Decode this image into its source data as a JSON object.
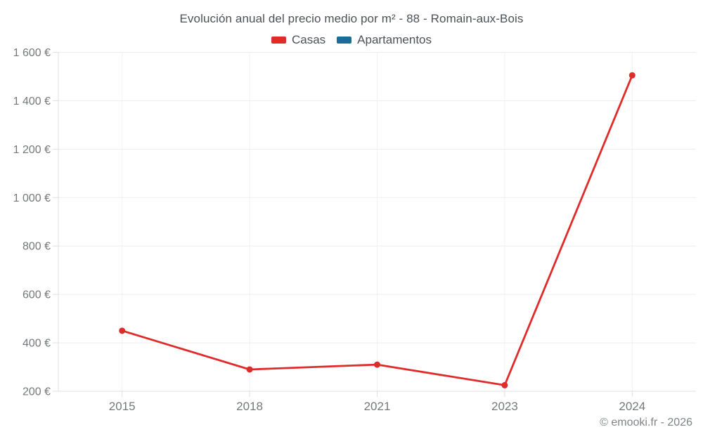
{
  "chart_data": {
    "type": "line",
    "title": "Evolución anual del precio medio por m² - 88 - Romain-aux-Bois",
    "categories": [
      "2015",
      "2018",
      "2021",
      "2023",
      "2024"
    ],
    "series": [
      {
        "name": "Casas",
        "color": "#e02b2b",
        "values": [
          450,
          290,
          310,
          225,
          1505
        ]
      },
      {
        "name": "Apartamentos",
        "color": "#1a6e96",
        "values": []
      }
    ],
    "y_axis": {
      "min": 200,
      "max": 1600,
      "step": 200,
      "unit": "€",
      "ticks": [
        {
          "value": 200,
          "label": "200 €"
        },
        {
          "value": 400,
          "label": "400 €"
        },
        {
          "value": 600,
          "label": "600 €"
        },
        {
          "value": 800,
          "label": "800 €"
        },
        {
          "value": 1000,
          "label": "1 000 €"
        },
        {
          "value": 1200,
          "label": "1 200 €"
        },
        {
          "value": 1400,
          "label": "1 400 €"
        },
        {
          "value": 1600,
          "label": "1 600 €"
        }
      ]
    },
    "grid": true,
    "legend_position": "top"
  },
  "colors": {
    "casas": "#e02b2b",
    "apartamentos": "#1a6e96",
    "grid_horizontal": "#ededed",
    "grid_vertical": "#f1f1f1",
    "axis": "#e0e0e0",
    "axis_label": "#75787b",
    "text": "#4d5156"
  },
  "footer": {
    "copyright": "© emooki.fr - 2026"
  }
}
